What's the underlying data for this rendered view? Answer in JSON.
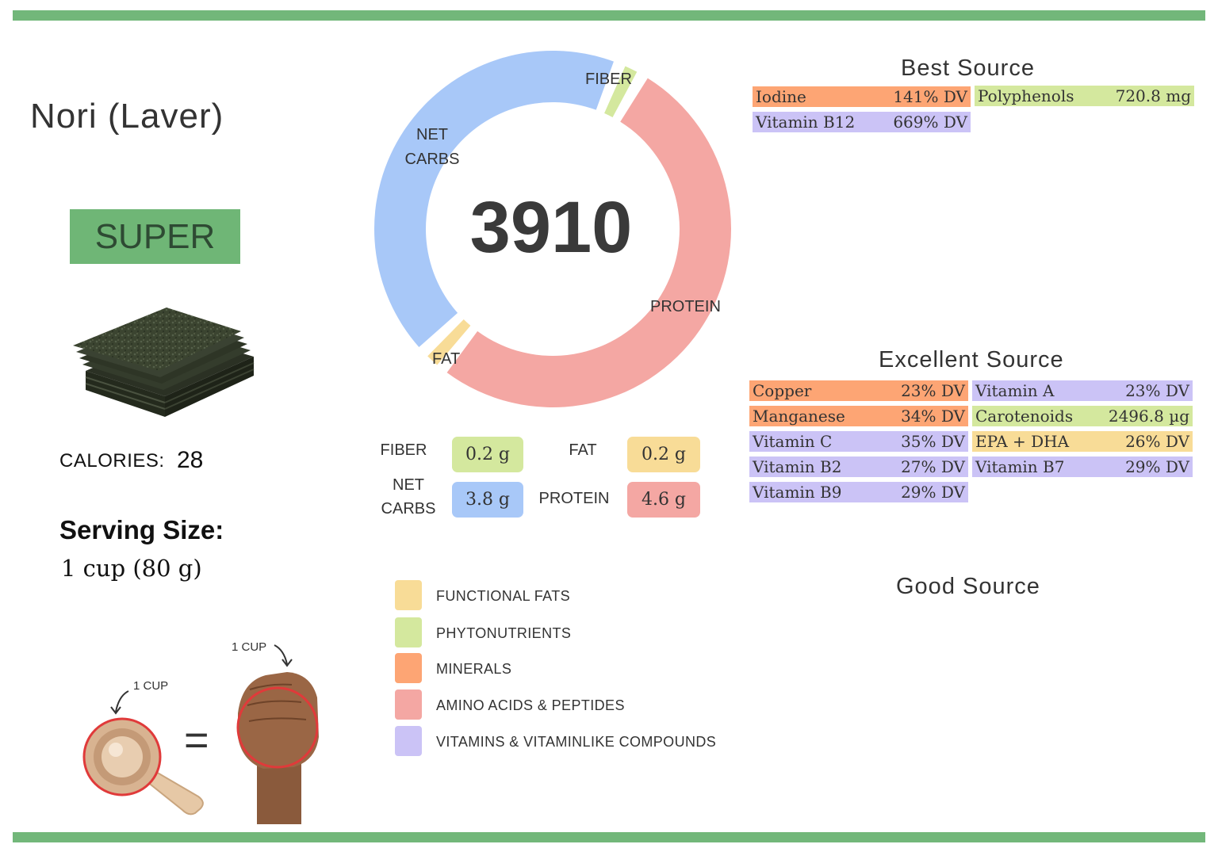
{
  "food": {
    "name": "Nori (Laver)",
    "rating": "SUPER",
    "calories_label": "CALORIES:",
    "calories_value": "28",
    "serving_label": "Serving Size:",
    "serving_value": "1 cup (80 g)",
    "cup_label": "1 CUP",
    "fist_label": "1 CUP",
    "equals": "="
  },
  "chart_data": {
    "type": "pie",
    "center_label": "3910",
    "slices": [
      {
        "label": "FIBER",
        "value": 0.2,
        "color": "#d4e89e"
      },
      {
        "label": "PROTEIN",
        "value": 4.6,
        "color": "#f4a7a3"
      },
      {
        "label": "FAT",
        "value": 0.2,
        "color": "#f8dc97"
      },
      {
        "label": "NET CARBS",
        "value": 3.8,
        "color": "#a8c8f8"
      }
    ]
  },
  "macros": {
    "fiber_label": "FIBER",
    "fiber_value": "0.2 g",
    "fat_label": "FAT",
    "fat_value": "0.2 g",
    "carbs_label_1": "NET",
    "carbs_label_2": "CARBS",
    "carbs_value": "3.8 g",
    "protein_label": "PROTEIN",
    "protein_value": "4.6 g"
  },
  "donut_labels": {
    "fiber": "FIBER",
    "net": "NET",
    "carbs": "CARBS",
    "protein": "PROTEIN",
    "fat": "FAT"
  },
  "legend": [
    {
      "label": "FUNCTIONAL  FATS",
      "color": "#f8dc97"
    },
    {
      "label": "PHYTONUTRIENTS",
      "color": "#d4e89e"
    },
    {
      "label": "MINERALS",
      "color": "#fda574"
    },
    {
      "label": "AMINO ACIDS & PEPTIDES",
      "color": "#f4a7a3"
    },
    {
      "label": "VITAMINS & VITAMINLIKE COMPOUNDS",
      "color": "#cbc3f6"
    }
  ],
  "best_source": {
    "heading": "Best Source",
    "items": [
      {
        "name": "Iodine",
        "value": "141% DV",
        "color": "#fda574"
      },
      {
        "name": "Polyphenols",
        "value": "720.8 mg",
        "color": "#d4e89e"
      },
      {
        "name": "Vitamin B12",
        "value": "669% DV",
        "color": "#cbc3f6"
      }
    ]
  },
  "excellent_source": {
    "heading": "Excellent Source",
    "items": [
      {
        "name": "Copper",
        "value": "23% DV",
        "color": "#fda574"
      },
      {
        "name": "Vitamin A",
        "value": "23% DV",
        "color": "#cbc3f6"
      },
      {
        "name": "Manganese",
        "value": "34% DV",
        "color": "#fda574"
      },
      {
        "name": "Carotenoids",
        "value": "2496.8 µg",
        "color": "#d4e89e"
      },
      {
        "name": "Vitamin C",
        "value": "35% DV",
        "color": "#cbc3f6"
      },
      {
        "name": "EPA + DHA",
        "value": "26% DV",
        "color": "#f8dc97"
      },
      {
        "name": "Vitamin B2",
        "value": "27% DV",
        "color": "#cbc3f6"
      },
      {
        "name": "Vitamin B7",
        "value": "29% DV",
        "color": "#cbc3f6"
      },
      {
        "name": "Vitamin B9",
        "value": "29% DV",
        "color": "#cbc3f6"
      }
    ]
  },
  "good_source": {
    "heading": "Good Source"
  }
}
